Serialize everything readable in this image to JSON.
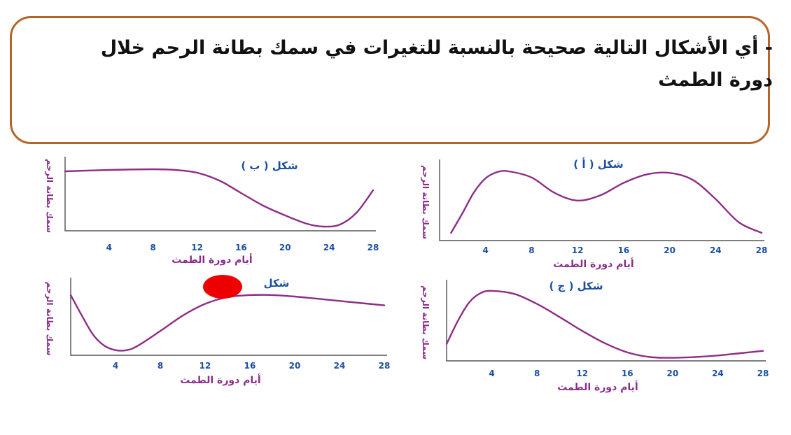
{
  "question": {
    "text": "- أي الأشكال التالية صحيحة بالنسبة للتغيرات في سمك بطانة الرحم خلال دورة الطمث"
  },
  "colors": {
    "border": "#b5652a",
    "curve": "#8e2d86",
    "title": "#1a4fa0",
    "label": "#8a2d8a",
    "marker": "#ee0000"
  },
  "chart_data": [
    {
      "id": "a",
      "type": "line",
      "title": "شكل ( أ )",
      "xlabel": "أيام دورة الطمث",
      "ylabel": "سمك بطانة الرحم",
      "xticks": [
        4,
        8,
        12,
        16,
        20,
        24,
        28
      ],
      "xlim": [
        0,
        28
      ],
      "ylim": [
        0,
        10
      ],
      "points": [
        [
          1,
          1
        ],
        [
          2,
          3.6
        ],
        [
          3,
          6.3
        ],
        [
          4,
          8.1
        ],
        [
          5,
          8.9
        ],
        [
          6,
          9.0
        ],
        [
          8,
          8.2
        ],
        [
          10,
          6.2
        ],
        [
          12,
          5.2
        ],
        [
          14,
          5.9
        ],
        [
          16,
          7.5
        ],
        [
          18,
          8.6
        ],
        [
          20,
          8.8
        ],
        [
          22,
          7.9
        ],
        [
          24,
          5.4
        ],
        [
          26,
          2.4
        ],
        [
          28,
          1
        ]
      ]
    },
    {
      "id": "b",
      "type": "line",
      "title": "شكل ( ب )",
      "xlabel": "أيام دورة الطمث",
      "ylabel": "سمك بطانة الرحم",
      "xticks": [
        4,
        8,
        12,
        16,
        20,
        24,
        28
      ],
      "xlim": [
        0,
        28
      ],
      "ylim": [
        0,
        10
      ],
      "points": [
        [
          0,
          8.5
        ],
        [
          4,
          8.7
        ],
        [
          8,
          8.8
        ],
        [
          10,
          8.7
        ],
        [
          12,
          8.3
        ],
        [
          14,
          7.2
        ],
        [
          16,
          5.4
        ],
        [
          18,
          3.6
        ],
        [
          20,
          2.2
        ],
        [
          22,
          1.0
        ],
        [
          23.5,
          0.6
        ],
        [
          25,
          0.9
        ],
        [
          26.5,
          2.6
        ],
        [
          28,
          5.8
        ]
      ]
    },
    {
      "id": "c",
      "type": "line",
      "title": "شكل ( ج )",
      "xlabel": "أيام دورة الطمث",
      "ylabel": "سمك بطانة الرحم",
      "xticks": [
        4,
        8,
        12,
        16,
        20,
        24,
        28
      ],
      "xlim": [
        0,
        28
      ],
      "ylim": [
        0,
        10
      ],
      "points": [
        [
          0,
          2.2
        ],
        [
          1,
          5.2
        ],
        [
          2,
          7.6
        ],
        [
          3,
          8.8
        ],
        [
          4,
          9.1
        ],
        [
          6,
          8.7
        ],
        [
          8,
          7.4
        ],
        [
          10,
          5.7
        ],
        [
          12,
          3.9
        ],
        [
          14,
          2.3
        ],
        [
          16,
          1.1
        ],
        [
          18,
          0.5
        ],
        [
          20,
          0.4
        ],
        [
          22,
          0.5
        ],
        [
          24,
          0.7
        ],
        [
          26,
          1.0
        ],
        [
          28,
          1.3
        ]
      ]
    },
    {
      "id": "d",
      "type": "line",
      "title": "شكل",
      "xlabel": "أيام دورة الطمث",
      "ylabel": "سمك بطانة الرحم",
      "xticks": [
        4,
        8,
        12,
        16,
        20,
        24,
        28
      ],
      "xlim": [
        0,
        28
      ],
      "ylim": [
        0,
        10
      ],
      "points": [
        [
          0,
          8.2
        ],
        [
          1,
          5.4
        ],
        [
          2,
          2.8
        ],
        [
          3,
          1.3
        ],
        [
          4,
          0.7
        ],
        [
          5,
          0.7
        ],
        [
          6,
          1.3
        ],
        [
          8,
          3.3
        ],
        [
          10,
          5.4
        ],
        [
          12,
          7.0
        ],
        [
          14,
          7.9
        ],
        [
          16,
          8.2
        ],
        [
          18,
          8.2
        ],
        [
          20,
          8.0
        ],
        [
          22,
          7.7
        ],
        [
          24,
          7.4
        ],
        [
          26,
          7.1
        ],
        [
          28,
          6.8
        ]
      ]
    }
  ]
}
